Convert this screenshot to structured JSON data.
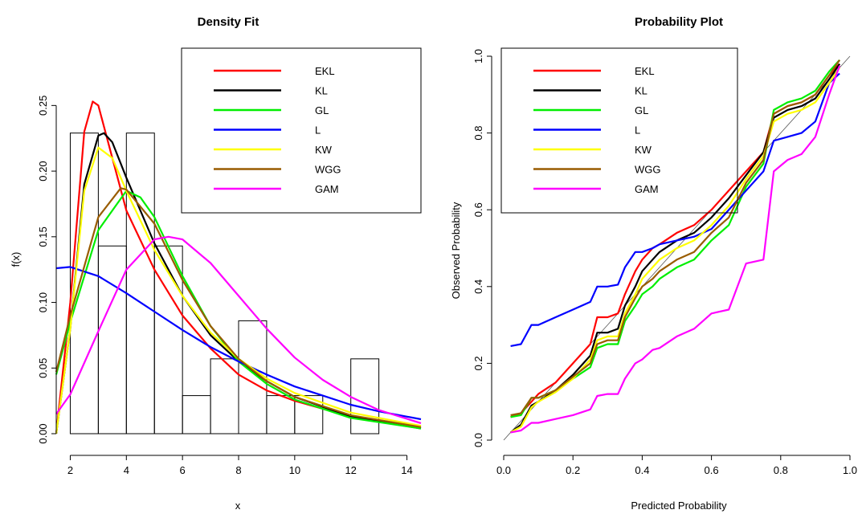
{
  "chart_data": [
    {
      "type": "line",
      "title": "Density Fit",
      "xlabel": "x",
      "ylabel": "f(x)",
      "xlim": [
        1.5,
        14.5
      ],
      "ylim": [
        0,
        0.26
      ],
      "xticks": [
        2,
        4,
        6,
        8,
        10,
        12,
        14
      ],
      "yticks": [
        0.0,
        0.05,
        0.1,
        0.15,
        0.2,
        0.25
      ],
      "xtick_labels": [
        "2",
        "4",
        "6",
        "8",
        "10",
        "12",
        "14"
      ],
      "ytick_labels": [
        "0.00",
        "0.05",
        "0.10",
        "0.15",
        "0.20",
        "0.25"
      ],
      "legend_position": "top-right",
      "histogram": {
        "breaks": [
          2,
          3,
          4,
          5,
          6,
          7,
          8,
          9,
          10,
          11,
          12,
          13,
          14
        ],
        "densities": [
          0.229,
          0.143,
          0.229,
          0.143,
          0.029,
          0.057,
          0.086,
          0.029,
          0.029,
          0,
          0.057,
          0
        ]
      },
      "series": [
        {
          "name": "EKL",
          "color": "#ff0000",
          "x": [
            1.5,
            2.0,
            2.5,
            2.8,
            3.0,
            3.5,
            4.0,
            5.0,
            6.0,
            7.0,
            8.0,
            9.0,
            10.0,
            12.0,
            14.5
          ],
          "y": [
            0.0,
            0.1,
            0.23,
            0.253,
            0.25,
            0.21,
            0.17,
            0.125,
            0.09,
            0.065,
            0.045,
            0.033,
            0.025,
            0.013,
            0.005
          ]
        },
        {
          "name": "KL",
          "color": "#000000",
          "x": [
            1.5,
            2.0,
            2.5,
            3.0,
            3.2,
            3.5,
            4.0,
            5.0,
            6.0,
            7.0,
            8.0,
            9.0,
            10.0,
            12.0,
            14.5
          ],
          "y": [
            0.0,
            0.08,
            0.19,
            0.227,
            0.229,
            0.222,
            0.195,
            0.145,
            0.105,
            0.075,
            0.055,
            0.04,
            0.028,
            0.013,
            0.004
          ]
        },
        {
          "name": "GL",
          "color": "#00ee00",
          "x": [
            1.5,
            2.0,
            3.0,
            4.0,
            4.5,
            5.0,
            6.0,
            7.0,
            8.0,
            9.0,
            10.0,
            12.0,
            14.5
          ],
          "y": [
            0.045,
            0.085,
            0.155,
            0.185,
            0.18,
            0.165,
            0.12,
            0.082,
            0.055,
            0.038,
            0.026,
            0.012,
            0.004
          ]
        },
        {
          "name": "L",
          "color": "#0000ff",
          "x": [
            1.5,
            2.0,
            3.0,
            4.0,
            5.0,
            6.0,
            7.0,
            8.0,
            9.0,
            10.0,
            11.0,
            12.0,
            13.0,
            14.5
          ],
          "y": [
            0.126,
            0.127,
            0.12,
            0.107,
            0.093,
            0.079,
            0.066,
            0.055,
            0.045,
            0.036,
            0.029,
            0.022,
            0.017,
            0.011
          ]
        },
        {
          "name": "KW",
          "color": "#ffff00",
          "x": [
            1.5,
            2.0,
            2.5,
            3.0,
            3.5,
            4.0,
            5.0,
            6.0,
            7.0,
            8.0,
            9.0,
            10.0,
            12.0,
            14.5
          ],
          "y": [
            0.0,
            0.08,
            0.185,
            0.218,
            0.21,
            0.185,
            0.14,
            0.105,
            0.077,
            0.057,
            0.042,
            0.031,
            0.016,
            0.006
          ]
        },
        {
          "name": "WGG",
          "color": "#995c00",
          "x": [
            1.5,
            2.0,
            3.0,
            3.8,
            4.0,
            5.0,
            6.0,
            7.0,
            8.0,
            9.0,
            10.0,
            12.0,
            14.5
          ],
          "y": [
            0.047,
            0.09,
            0.165,
            0.187,
            0.186,
            0.16,
            0.117,
            0.082,
            0.057,
            0.04,
            0.028,
            0.014,
            0.005
          ]
        },
        {
          "name": "GAM",
          "color": "#ff00ff",
          "x": [
            1.5,
            2.0,
            3.0,
            4.0,
            5.0,
            5.5,
            6.0,
            7.0,
            8.0,
            9.0,
            10.0,
            11.0,
            12.0,
            13.0,
            14.5
          ],
          "y": [
            0.015,
            0.03,
            0.078,
            0.125,
            0.148,
            0.15,
            0.148,
            0.13,
            0.105,
            0.08,
            0.058,
            0.041,
            0.028,
            0.018,
            0.008
          ]
        }
      ]
    },
    {
      "type": "line",
      "title": "Probability Plot",
      "xlabel": "Predicted Probability",
      "ylabel": "Observed Probability",
      "xlim": [
        0,
        1
      ],
      "ylim": [
        0,
        1
      ],
      "xticks": [
        0.0,
        0.2,
        0.4,
        0.6,
        0.8,
        1.0
      ],
      "yticks": [
        0.0,
        0.2,
        0.4,
        0.6,
        0.8,
        1.0
      ],
      "xtick_labels": [
        "0.0",
        "0.2",
        "0.4",
        "0.6",
        "0.8",
        "1.0"
      ],
      "ytick_labels": [
        "0.0",
        "0.2",
        "0.4",
        "0.6",
        "0.8",
        "1.0"
      ],
      "legend_position": "top-left",
      "reference_line": [
        [
          0,
          0
        ],
        [
          1,
          1
        ]
      ],
      "series": [
        {
          "name": "EKL",
          "color": "#ff0000",
          "x": [
            0.02,
            0.05,
            0.08,
            0.1,
            0.15,
            0.2,
            0.25,
            0.27,
            0.3,
            0.33,
            0.35,
            0.38,
            0.4,
            0.43,
            0.45,
            0.5,
            0.55,
            0.6,
            0.65,
            0.7,
            0.75,
            0.78,
            0.82,
            0.86,
            0.9,
            0.94,
            0.97
          ],
          "y": [
            0.06,
            0.07,
            0.1,
            0.12,
            0.15,
            0.2,
            0.25,
            0.32,
            0.32,
            0.33,
            0.38,
            0.44,
            0.47,
            0.5,
            0.51,
            0.54,
            0.56,
            0.6,
            0.65,
            0.7,
            0.75,
            0.85,
            0.87,
            0.88,
            0.9,
            0.95,
            0.98
          ]
        },
        {
          "name": "KL",
          "color": "#000000",
          "x": [
            0.02,
            0.05,
            0.08,
            0.1,
            0.15,
            0.2,
            0.25,
            0.27,
            0.3,
            0.33,
            0.35,
            0.38,
            0.4,
            0.43,
            0.45,
            0.5,
            0.55,
            0.6,
            0.65,
            0.7,
            0.75,
            0.78,
            0.82,
            0.86,
            0.9,
            0.94,
            0.97
          ],
          "y": [
            0.02,
            0.04,
            0.09,
            0.1,
            0.13,
            0.17,
            0.22,
            0.28,
            0.28,
            0.29,
            0.35,
            0.4,
            0.44,
            0.47,
            0.49,
            0.52,
            0.54,
            0.58,
            0.63,
            0.69,
            0.75,
            0.84,
            0.86,
            0.87,
            0.89,
            0.94,
            0.98
          ]
        },
        {
          "name": "GL",
          "color": "#00ee00",
          "x": [
            0.02,
            0.05,
            0.08,
            0.1,
            0.15,
            0.2,
            0.25,
            0.27,
            0.3,
            0.33,
            0.35,
            0.38,
            0.4,
            0.43,
            0.45,
            0.5,
            0.55,
            0.6,
            0.65,
            0.7,
            0.75,
            0.78,
            0.82,
            0.86,
            0.9,
            0.94,
            0.97
          ],
          "y": [
            0.06,
            0.065,
            0.11,
            0.11,
            0.13,
            0.16,
            0.19,
            0.24,
            0.25,
            0.25,
            0.31,
            0.35,
            0.38,
            0.4,
            0.42,
            0.45,
            0.47,
            0.52,
            0.56,
            0.66,
            0.72,
            0.86,
            0.88,
            0.89,
            0.91,
            0.96,
            0.99
          ]
        },
        {
          "name": "L",
          "color": "#0000ff",
          "x": [
            0.02,
            0.05,
            0.08,
            0.1,
            0.15,
            0.2,
            0.25,
            0.27,
            0.3,
            0.33,
            0.35,
            0.38,
            0.4,
            0.43,
            0.45,
            0.5,
            0.55,
            0.6,
            0.65,
            0.7,
            0.75,
            0.78,
            0.82,
            0.86,
            0.9,
            0.94,
            0.97
          ],
          "y": [
            0.245,
            0.25,
            0.3,
            0.3,
            0.32,
            0.34,
            0.36,
            0.4,
            0.4,
            0.405,
            0.45,
            0.49,
            0.49,
            0.5,
            0.51,
            0.52,
            0.53,
            0.55,
            0.6,
            0.65,
            0.7,
            0.78,
            0.79,
            0.8,
            0.83,
            0.93,
            0.955
          ]
        },
        {
          "name": "KW",
          "color": "#ffff00",
          "x": [
            0.02,
            0.05,
            0.08,
            0.1,
            0.15,
            0.2,
            0.25,
            0.27,
            0.3,
            0.33,
            0.35,
            0.38,
            0.4,
            0.43,
            0.45,
            0.5,
            0.55,
            0.6,
            0.65,
            0.7,
            0.75,
            0.78,
            0.82,
            0.86,
            0.9,
            0.94,
            0.97
          ],
          "y": [
            0.02,
            0.035,
            0.085,
            0.1,
            0.125,
            0.16,
            0.21,
            0.26,
            0.27,
            0.27,
            0.33,
            0.38,
            0.42,
            0.45,
            0.47,
            0.5,
            0.52,
            0.56,
            0.61,
            0.68,
            0.74,
            0.83,
            0.85,
            0.86,
            0.88,
            0.93,
            0.97
          ]
        },
        {
          "name": "WGG",
          "color": "#995c00",
          "x": [
            0.02,
            0.05,
            0.08,
            0.1,
            0.15,
            0.2,
            0.25,
            0.27,
            0.3,
            0.33,
            0.35,
            0.38,
            0.4,
            0.43,
            0.45,
            0.5,
            0.55,
            0.6,
            0.65,
            0.7,
            0.75,
            0.78,
            0.82,
            0.86,
            0.9,
            0.94,
            0.97
          ],
          "y": [
            0.065,
            0.07,
            0.11,
            0.11,
            0.13,
            0.165,
            0.2,
            0.25,
            0.26,
            0.26,
            0.32,
            0.37,
            0.4,
            0.42,
            0.44,
            0.47,
            0.49,
            0.54,
            0.58,
            0.67,
            0.73,
            0.85,
            0.87,
            0.88,
            0.9,
            0.95,
            0.99
          ]
        },
        {
          "name": "GAM",
          "color": "#ff00ff",
          "x": [
            0.02,
            0.05,
            0.08,
            0.1,
            0.15,
            0.2,
            0.25,
            0.27,
            0.3,
            0.33,
            0.35,
            0.38,
            0.4,
            0.43,
            0.45,
            0.5,
            0.55,
            0.6,
            0.65,
            0.7,
            0.75,
            0.78,
            0.82,
            0.86,
            0.9,
            0.94,
            0.97
          ],
          "y": [
            0.02,
            0.025,
            0.045,
            0.045,
            0.055,
            0.065,
            0.08,
            0.115,
            0.12,
            0.12,
            0.16,
            0.2,
            0.21,
            0.235,
            0.24,
            0.27,
            0.29,
            0.33,
            0.34,
            0.46,
            0.47,
            0.7,
            0.73,
            0.745,
            0.79,
            0.9,
            0.975
          ]
        }
      ]
    }
  ]
}
